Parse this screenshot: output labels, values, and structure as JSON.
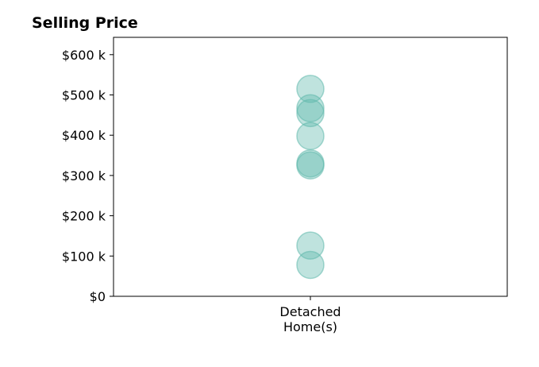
{
  "chart_data": {
    "type": "scatter",
    "title": "Selling Price",
    "categories": [
      [
        "Detached",
        "Home(s)"
      ]
    ],
    "series": [
      {
        "category_index": 0,
        "values": [
          515000,
          467000,
          455000,
          398000,
          330000,
          325000,
          126000,
          78000
        ]
      }
    ],
    "y_ticks": [
      0,
      100000,
      200000,
      300000,
      400000,
      500000,
      600000
    ],
    "y_tick_labels": [
      "$0",
      "$100 k",
      "$200 k",
      "$300 k",
      "$400 k",
      "$500 k",
      "$600 k"
    ],
    "ylim": [
      0,
      643000
    ],
    "grid": false,
    "colors": {
      "marker": "#5fb8ac"
    }
  }
}
